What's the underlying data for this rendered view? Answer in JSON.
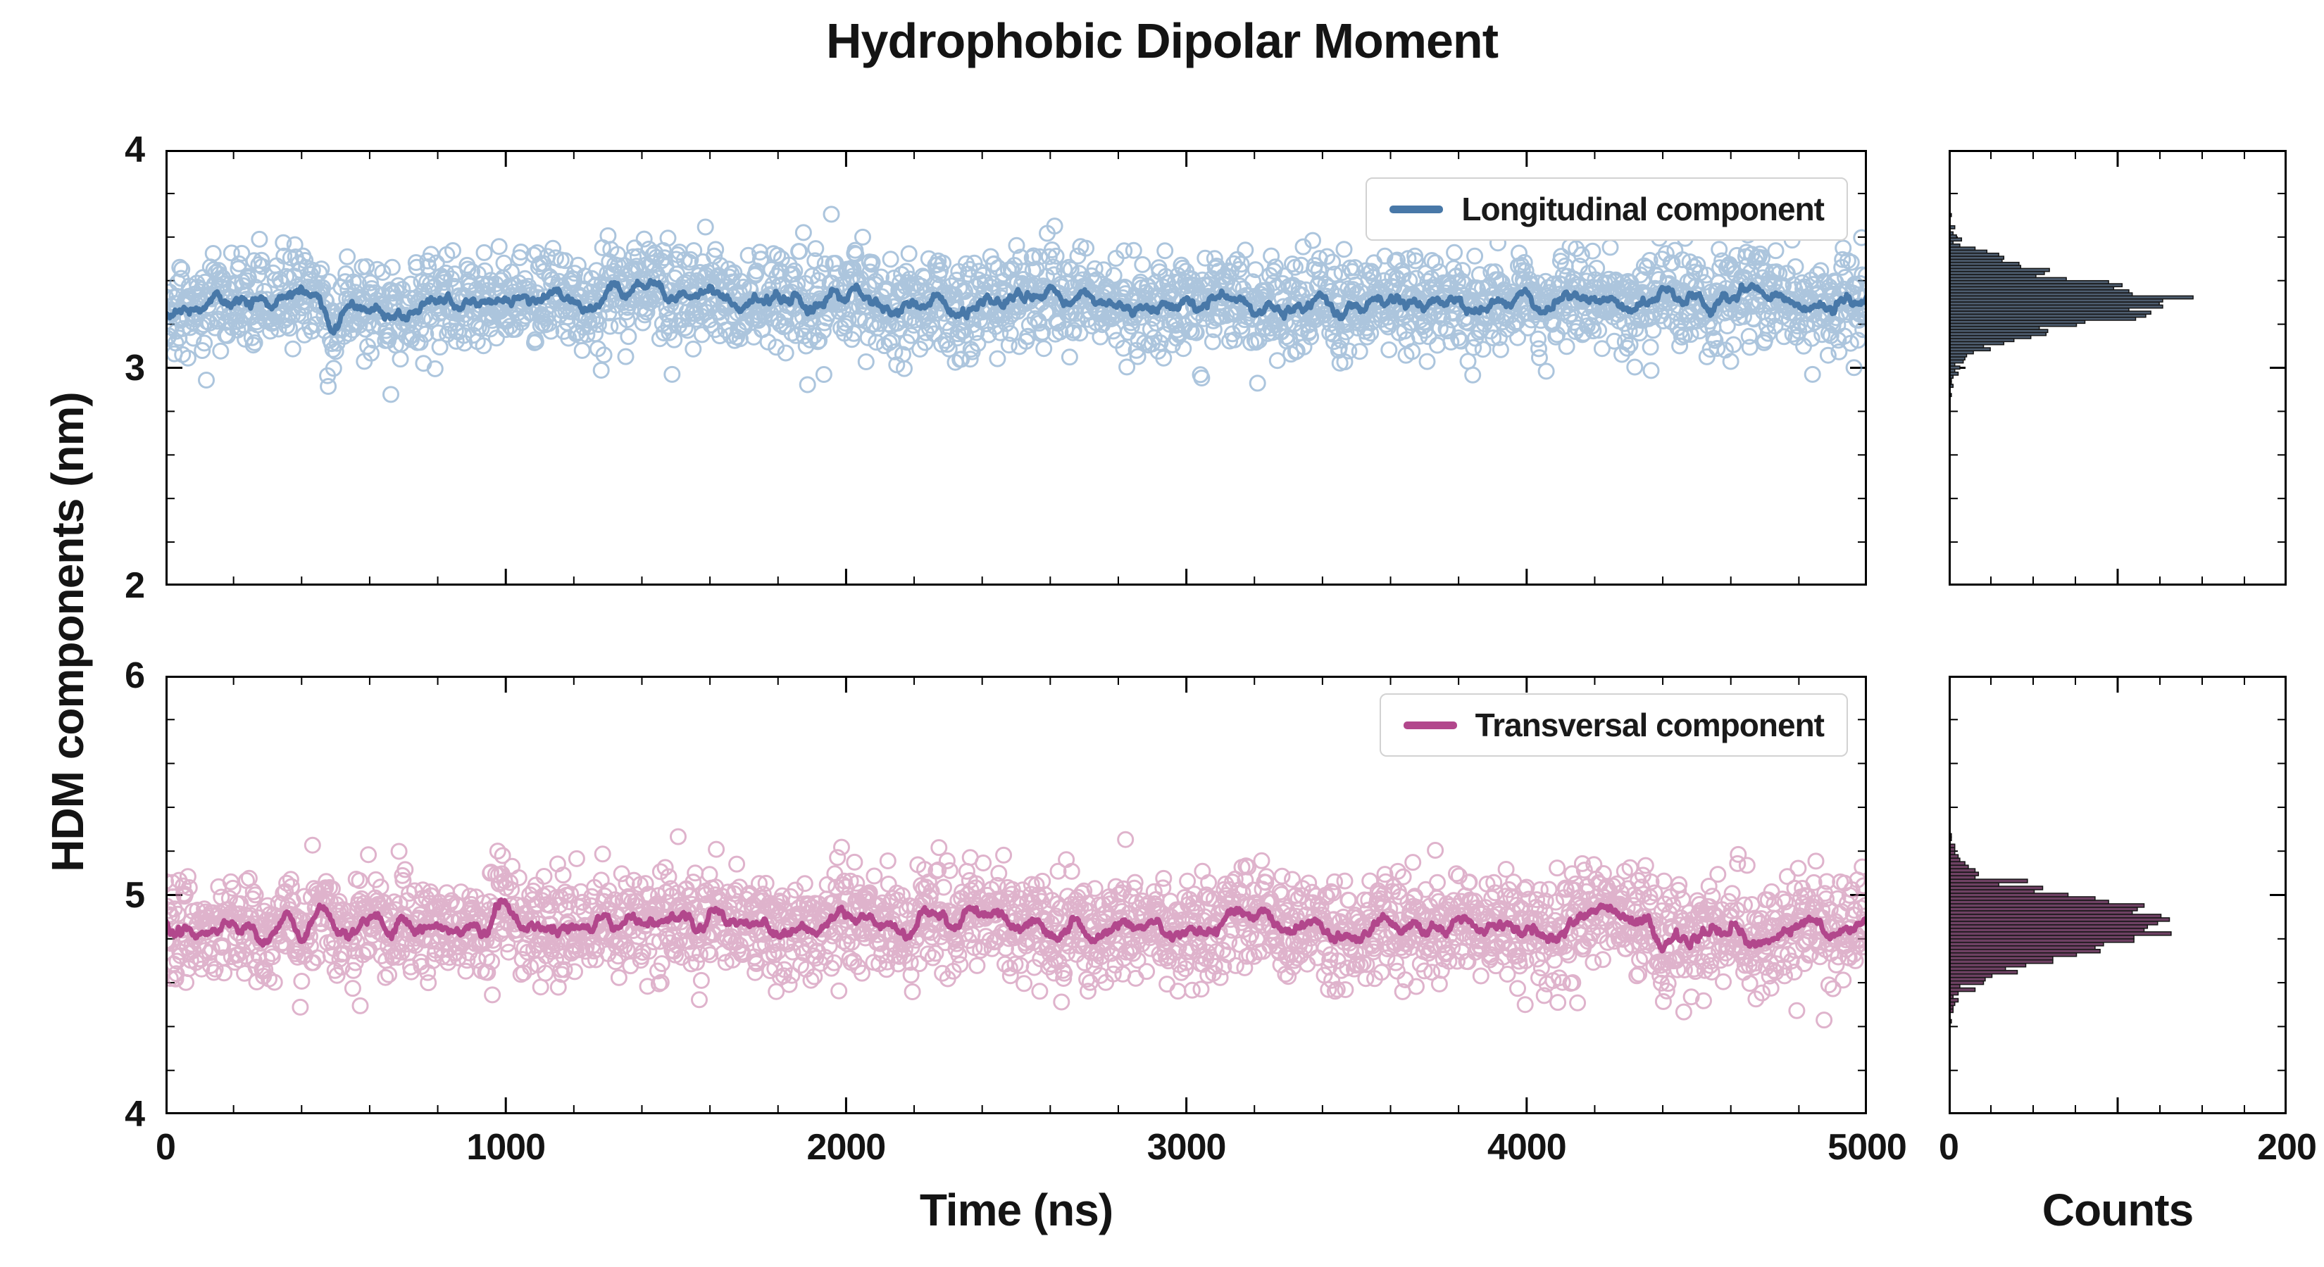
{
  "figure": {
    "title": "Hydrophobic Dipolar Moment",
    "ylabel": "HDM components (nm)",
    "xlabel_left": "Time (ns)",
    "xlabel_right": "Counts"
  },
  "chart_data": {
    "layout": "2x2 grid: left column = time-series scatter with running-mean line; right column = horizontal count histograms sharing the y axis of each row; legend inside top-right of each scatter panel",
    "title": "Hydrophobic Dipolar Moment",
    "shared_ylabel": "HDM components (nm)",
    "xlabel_time": "Time (ns)",
    "xlabel_counts": "Counts",
    "rows": [
      {
        "name": "longitudinal",
        "legend_label": "Longitudinal component",
        "scatter": {
          "type": "scatter",
          "xlim": [
            0,
            5000
          ],
          "ylim": [
            2,
            4
          ],
          "xticks": [
            0,
            1000,
            2000,
            3000,
            4000,
            5000
          ],
          "yticks": [
            2,
            3,
            4
          ],
          "x_tick_labels_shown": false,
          "n_points": 2500,
          "mean": 3.3,
          "std": 0.11,
          "wander_std": 0.01,
          "seed": 42,
          "point_color": "#7aa3c9",
          "line_color": "#4878a8",
          "description": "noisy stationary series around 3.3 nm with thick running-mean line"
        },
        "histogram": {
          "type": "histogram",
          "orientation": "horizontal",
          "xlim": [
            0,
            200
          ],
          "xticks": [
            0,
            100,
            200
          ],
          "xminors": [
            25,
            50,
            75,
            125,
            150,
            175
          ],
          "xtick_labels_shown": [],
          "bin_width_nm": 0.014,
          "approx_peak_counts": 130,
          "peak_position_nm": 3.3,
          "fill_color": "#4d5c6e",
          "edge_color": "#151515"
        }
      },
      {
        "name": "transversal",
        "legend_label": "Transversal component",
        "scatter": {
          "type": "scatter",
          "xlim": [
            0,
            5000
          ],
          "ylim": [
            4,
            6
          ],
          "xticks": [
            0,
            1000,
            2000,
            3000,
            4000,
            5000
          ],
          "yticks": [
            4,
            5,
            6
          ],
          "x_tick_labels_shown": true,
          "n_points": 2500,
          "mean": 4.85,
          "std": 0.12,
          "wander_std": 0.01,
          "seed": 1337,
          "point_color": "#cc85ad",
          "line_color": "#b2478c",
          "description": "noisy stationary series around 4.85 nm with thick running-mean line"
        },
        "histogram": {
          "type": "histogram",
          "orientation": "horizontal",
          "xlim": [
            0,
            200
          ],
          "xticks": [
            0,
            100,
            200
          ],
          "xminors": [
            25,
            50,
            75,
            125,
            150,
            175
          ],
          "xtick_labels_shown": [
            0,
            200
          ],
          "bin_width_nm": 0.016,
          "approx_peak_counts": 135,
          "peak_position_nm": 4.85,
          "fill_color": "#6e4163",
          "edge_color": "#151515"
        }
      }
    ]
  }
}
